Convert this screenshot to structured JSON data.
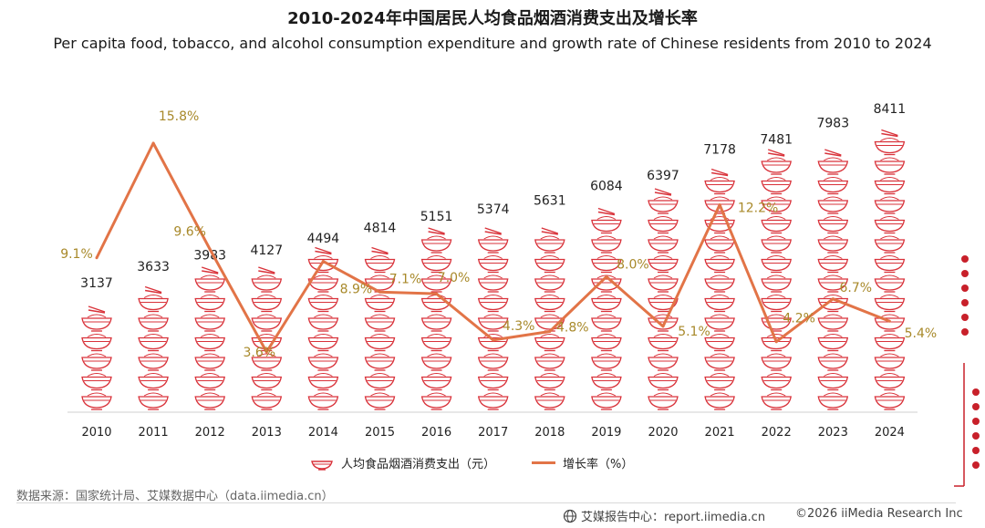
{
  "title": "2010-2024年中国居民人均食品烟酒消费支出及增长率",
  "subtitle": "Per capita food, tobacco, and alcohol consumption expenditure and growth rate of Chinese residents from 2010 to 2024",
  "source": "数据来源：国家统计局、艾媒数据中心（data.iimedia.cn）",
  "footer": {
    "site": "艾媒报告中心：report.iimedia.cn",
    "copyright": "©2026  iiMedia Research  Inc"
  },
  "colors": {
    "bowl": "#d9323a",
    "line": "#e27447",
    "growth_label": "#a8892a"
  },
  "chart_data": {
    "type": "bar",
    "categories": [
      "2010",
      "2011",
      "2012",
      "2013",
      "2014",
      "2015",
      "2016",
      "2017",
      "2018",
      "2019",
      "2020",
      "2021",
      "2022",
      "2023",
      "2024"
    ],
    "series": [
      {
        "name": "人均食品烟酒消费支出（元）",
        "kind": "pictogram-bowls",
        "values": [
          3137,
          3633,
          3983,
          4127,
          4494,
          4814,
          5151,
          5374,
          5631,
          6084,
          6397,
          7178,
          7481,
          7983,
          8411
        ]
      },
      {
        "name": "增长率（%）",
        "kind": "line",
        "values": [
          9.1,
          15.8,
          9.6,
          3.6,
          8.9,
          7.1,
          7.0,
          4.3,
          4.8,
          8.0,
          5.1,
          12.2,
          4.2,
          6.7,
          5.4
        ],
        "labels": [
          "9.1%",
          "15.8%",
          "9.6%",
          "3.6%",
          "8.9%",
          "7.1%",
          "7.0%",
          "4.3%",
          "4.8%",
          "8.0%",
          "5.1%",
          "12.2%",
          "4.2%",
          "6.7%",
          "5.4%"
        ]
      }
    ],
    "legend_position": "bottom",
    "grid": false
  }
}
